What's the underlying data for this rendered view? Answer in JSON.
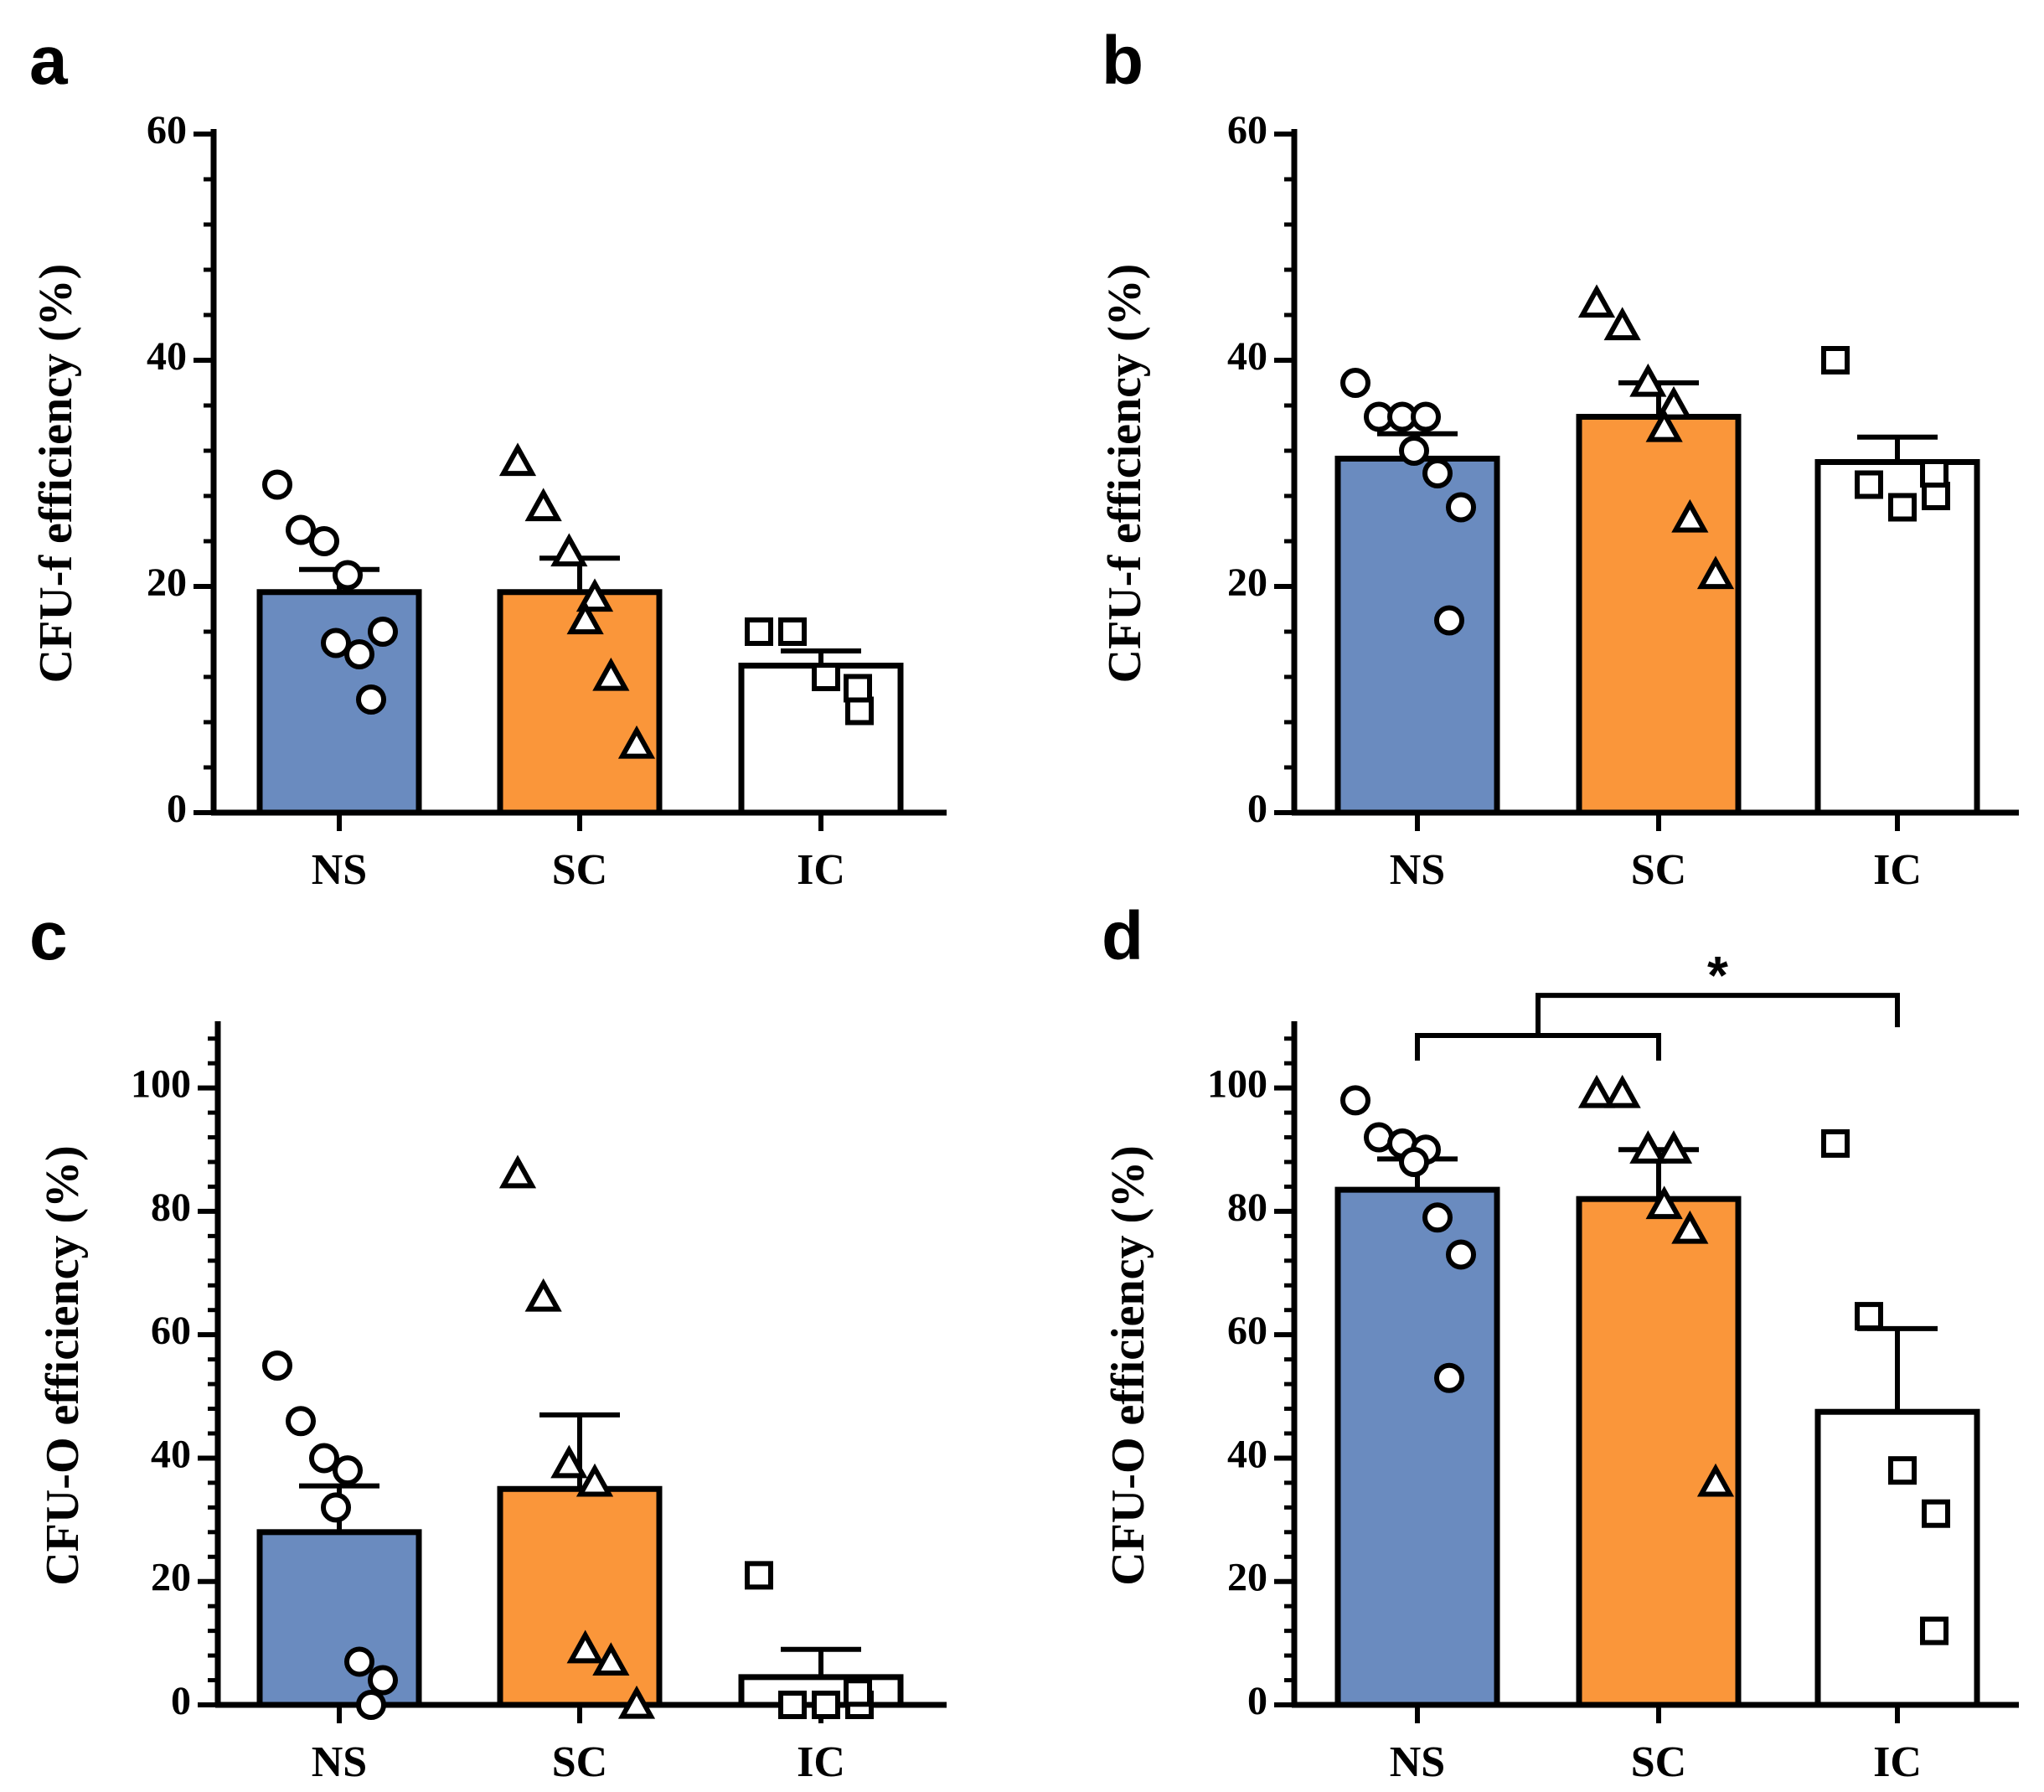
{
  "figure": {
    "colors": {
      "NS": "#6A8BBF",
      "SC": "#FA963A",
      "IC": "#FFFFFF",
      "stroke": "#000000"
    },
    "markers": {
      "NS": "circle",
      "SC": "triangle",
      "IC": "square"
    }
  },
  "chart_data": [
    {
      "panel": "a",
      "type": "bar",
      "ylabel": "CFU-f efficiency (%)",
      "ylim": [
        0,
        60
      ],
      "yticks": [
        0,
        20,
        40,
        60
      ],
      "categories": [
        "NS",
        "SC",
        "IC"
      ],
      "means": [
        19.5,
        19.5,
        13
      ],
      "sem": [
        2,
        3,
        1.3
      ],
      "points": [
        [
          29,
          25,
          24,
          21,
          15,
          14,
          16,
          10
        ],
        [
          31,
          27,
          23,
          19,
          17,
          12,
          6
        ],
        [
          16,
          16,
          12,
          9,
          11
        ]
      ]
    },
    {
      "panel": "b",
      "type": "bar",
      "ylabel": "CFU-f efficiency (%)",
      "ylim": [
        0,
        60
      ],
      "yticks": [
        0,
        20,
        40,
        60
      ],
      "categories": [
        "NS",
        "SC",
        "IC"
      ],
      "means": [
        31.3,
        35,
        31
      ],
      "sem": [
        2.2,
        3,
        2.2
      ],
      "points": [
        [
          38,
          35,
          35,
          35,
          32,
          30,
          27,
          17
        ],
        [
          45,
          43,
          38,
          36,
          34,
          26,
          21
        ],
        [
          40,
          29,
          27,
          28,
          30
        ]
      ]
    },
    {
      "panel": "c",
      "type": "bar",
      "ylabel": "CFU-O efficiency (%)",
      "ylim": [
        0,
        110
      ],
      "yticks": [
        0,
        20,
        40,
        60,
        80,
        100
      ],
      "categories": [
        "NS",
        "SC",
        "IC"
      ],
      "means": [
        28,
        35,
        4.5
      ],
      "sem": [
        7.5,
        12,
        4.5
      ],
      "points": [
        [
          55,
          46,
          40,
          38,
          32,
          7,
          4,
          0
        ],
        [
          86,
          66,
          39,
          36,
          9,
          7,
          0
        ],
        [
          21,
          0,
          0,
          0,
          2
        ]
      ]
    },
    {
      "panel": "d",
      "type": "bar",
      "ylabel": "CFU-O efficiency (%)",
      "ylim": [
        0,
        110
      ],
      "yticks": [
        0,
        20,
        40,
        60,
        80,
        100
      ],
      "categories": [
        "NS",
        "SC",
        "IC"
      ],
      "means": [
        83.5,
        82,
        47.5
      ],
      "sem": [
        5,
        8,
        13.5
      ],
      "points": [
        [
          98,
          92,
          91,
          90,
          88,
          79,
          73,
          53
        ],
        [
          99,
          99,
          90,
          90,
          81,
          77,
          36
        ],
        [
          91,
          63,
          38,
          31,
          12
        ]
      ],
      "significance": {
        "label": "*",
        "between": "NS+SC vs IC"
      }
    }
  ]
}
